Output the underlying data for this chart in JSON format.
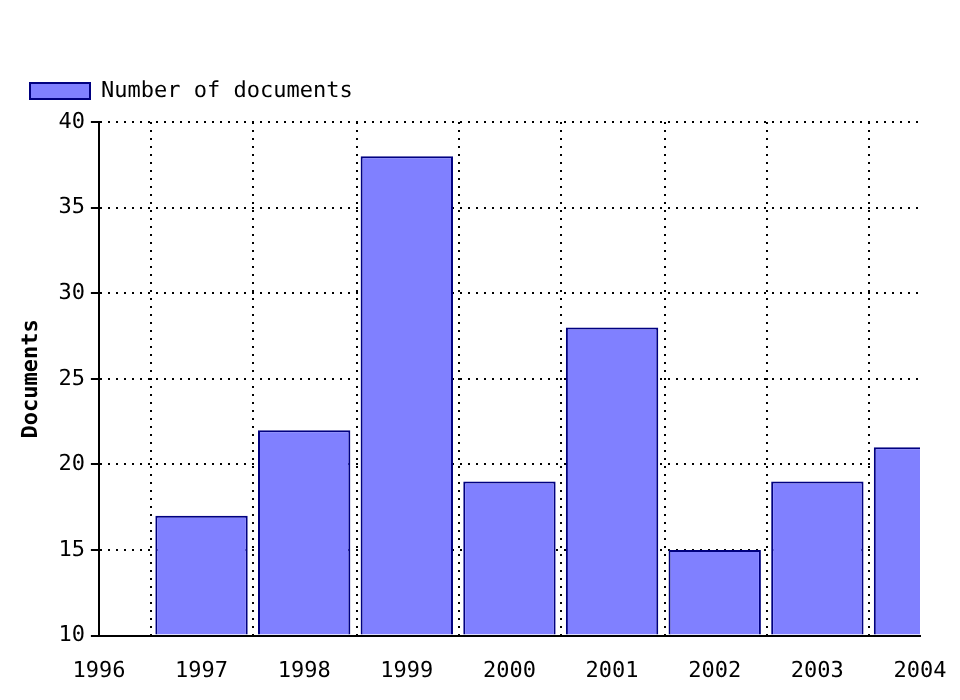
{
  "chart_data": {
    "type": "bar",
    "ylabel": "Documents",
    "x": [
      1997,
      1998,
      1999,
      2000,
      2001,
      2002,
      2003,
      2004
    ],
    "series": [
      {
        "name": "Number of documents",
        "color": "#8080ff",
        "values": [
          17,
          22,
          38,
          19,
          28,
          15,
          19,
          21
        ]
      }
    ],
    "xlim": [
      1996,
      2004
    ],
    "xticks": [
      1996,
      1997,
      1998,
      1999,
      2000,
      2001,
      2002,
      2003,
      2004
    ],
    "ylim": [
      10,
      40
    ],
    "yticks": [
      10,
      15,
      20,
      25,
      30,
      35,
      40
    ],
    "grid": true,
    "legend": "top left"
  }
}
